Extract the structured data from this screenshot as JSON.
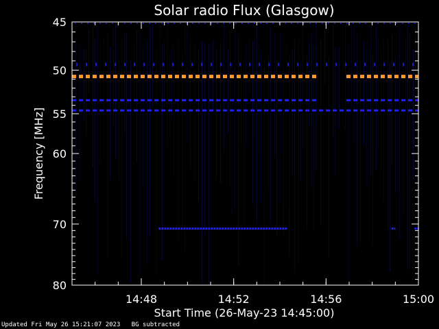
{
  "chart_data": {
    "type": "heatmap",
    "title": "Solar radio Flux (Glasgow)",
    "xlabel": "Start Time (26-May-23 14:45:00)",
    "ylabel": "Frequency [MHz]",
    "xlim": [
      "14:45:00",
      "15:00:00"
    ],
    "ylim": [
      45,
      80
    ],
    "y_scale": "log",
    "y_ticks": [
      45,
      50,
      55,
      60,
      70,
      80
    ],
    "y_tick_labels": [
      "45",
      "50",
      "55",
      "60",
      "70",
      "80"
    ],
    "x_ticks": [
      "14:48",
      "14:52",
      "14:56",
      "15:00"
    ],
    "grid": false,
    "background": "BG subtracted",
    "colors": {
      "background": "#000000",
      "low": "#0a0a3c",
      "medium": "#2020ff",
      "high": "#ff9a30"
    },
    "features": [
      {
        "frequency_mhz": 50.7,
        "start": "14:45:00",
        "end": "15:00:00",
        "intensity": "high",
        "gap": [
          "14:55:40",
          "14:56:40"
        ]
      },
      {
        "frequency_mhz": 53.4,
        "start": "14:45:00",
        "end": "15:00:00",
        "intensity": "medium",
        "gap": [
          "14:55:40",
          "14:56:40"
        ]
      },
      {
        "frequency_mhz": 54.6,
        "start": "14:45:00",
        "end": "15:00:00",
        "intensity": "medium"
      },
      {
        "frequency_mhz": 70.7,
        "start": "14:48:45",
        "end": "14:54:20",
        "intensity": "medium"
      },
      {
        "frequency_mhz": 70.7,
        "start": "14:58:50",
        "end": "14:59:00",
        "intensity": "medium"
      },
      {
        "frequency_mhz": 70.7,
        "start": "14:59:50",
        "end": "15:00:00",
        "intensity": "medium"
      }
    ]
  },
  "footer": {
    "updated": "Updated Fri May 26 15:21:07 2023",
    "bg_note": "BG subtracted"
  }
}
